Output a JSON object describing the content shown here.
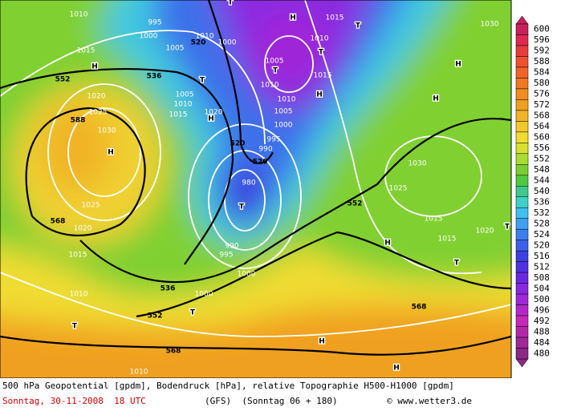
{
  "map_labels": [
    "1010",
    "995",
    "1000",
    "1010",
    "1000",
    "1015",
    "1005",
    "520",
    "536",
    "552",
    "1020",
    "1025",
    "588",
    "1030",
    "1005",
    "1010",
    "1015",
    "1020",
    "1005",
    "1010",
    "1010",
    "1015",
    "1015",
    "1010",
    "1005",
    "1000",
    "995",
    "990",
    "520",
    "520",
    "980",
    "552",
    "568",
    "1025",
    "1020",
    "1015",
    "990",
    "995",
    "1000",
    "1010",
    "1000",
    "536",
    "552",
    "1030",
    "1025",
    "1015",
    "1015",
    "1020",
    "568",
    "568",
    "1010",
    "1030",
    "H",
    "T",
    "T",
    "T",
    "H",
    "H",
    "H",
    "H",
    "H",
    "H",
    "T",
    "T",
    "H",
    "T",
    "T",
    "T",
    "T",
    "H",
    "H",
    "T"
  ],
  "color_scale": {
    "labels": [
      600,
      596,
      592,
      588,
      584,
      580,
      576,
      572,
      568,
      564,
      560,
      556,
      552,
      548,
      544,
      540,
      536,
      532,
      528,
      524,
      520,
      516,
      512,
      508,
      504,
      500,
      496,
      492,
      488,
      484,
      480
    ],
    "colors": [
      "#c8205a",
      "#e02850",
      "#e83c3c",
      "#f05030",
      "#f06428",
      "#f07820",
      "#f08c20",
      "#f0a020",
      "#f0b428",
      "#f0c828",
      "#f0dc30",
      "#d8e030",
      "#a8dc30",
      "#78d030",
      "#50c840",
      "#40c890",
      "#40d0c8",
      "#40c0f0",
      "#40a0f0",
      "#3c80f0",
      "#3c60e8",
      "#3c40e0",
      "#5030e0",
      "#6c28e0",
      "#8828e0",
      "#a028d8",
      "#b428c8",
      "#c828b8",
      "#b428a8",
      "#a02898",
      "#8c2888"
    ]
  },
  "footer": {
    "line1": "500 hPa Geopotential [gpdm], Bodendruck [hPa], relative Topographie H500-H1000 [gpdm]",
    "date": "Sonntag, 30-11-2008  18 UTC",
    "run": "(GFS)  (Sonntag 06 + 180)",
    "credit": "© www.wetter3.de"
  }
}
